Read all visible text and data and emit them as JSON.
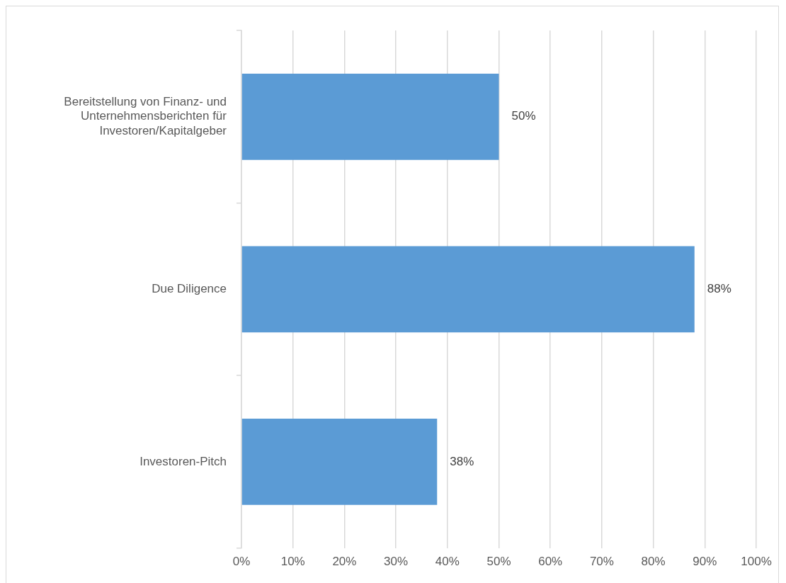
{
  "chart_data": {
    "type": "bar",
    "orientation": "horizontal",
    "categories": [
      "Bereitstellung von Finanz- und Unternehmensberichten für Investoren/Kapitalgeber",
      "Due Diligence",
      "Investoren-Pitch"
    ],
    "values": [
      50,
      88,
      38
    ],
    "color": "#5b9bd5",
    "xlim": [
      0,
      100
    ],
    "xticks": [
      {
        "value": 0,
        "label": "0%"
      },
      {
        "value": 10,
        "label": "10%"
      },
      {
        "value": 20,
        "label": "20%"
      },
      {
        "value": 30,
        "label": "30%"
      },
      {
        "value": 40,
        "label": "40%"
      },
      {
        "value": 50,
        "label": "50%"
      },
      {
        "value": 60,
        "label": "60%"
      },
      {
        "value": 70,
        "label": "70%"
      },
      {
        "value": 80,
        "label": "80%"
      },
      {
        "value": 90,
        "label": "90%"
      },
      {
        "value": 100,
        "label": "100%"
      }
    ],
    "value_labels": [
      "50%",
      "88%",
      "38%"
    ],
    "grid": "x",
    "legend": false
  }
}
